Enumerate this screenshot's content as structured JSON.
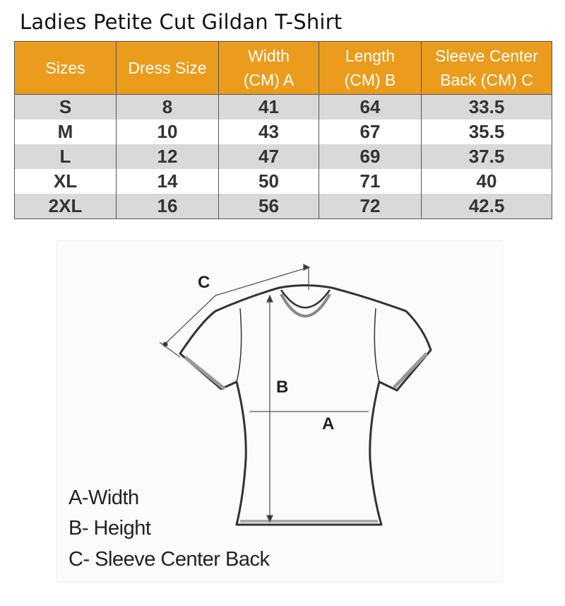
{
  "title": "Ladies Petite Cut Gildan T-Shirt",
  "table": {
    "headers": [
      [
        "Sizes"
      ],
      [
        "Dress Size"
      ],
      [
        "Width",
        "(CM) A"
      ],
      [
        "Length",
        "(CM) B"
      ],
      [
        "Sleeve Center",
        "Back (CM) C"
      ]
    ],
    "rows": [
      [
        "S",
        "8",
        "41",
        "64",
        "33.5"
      ],
      [
        "M",
        "10",
        "43",
        "67",
        "35.5"
      ],
      [
        "L",
        "12",
        "47",
        "69",
        "37.5"
      ],
      [
        "XL",
        "14",
        "50",
        "71",
        "40"
      ],
      [
        "2XL",
        "16",
        "56",
        "72",
        "42.5"
      ]
    ]
  },
  "diagram": {
    "labels": {
      "a": "A",
      "b": "B",
      "c": "C"
    },
    "legend": [
      "A-Width",
      "B- Height",
      "C- Sleeve Center Back"
    ]
  },
  "colors": {
    "header": "#eb9c1c",
    "stripe": "#d9d9d9"
  }
}
